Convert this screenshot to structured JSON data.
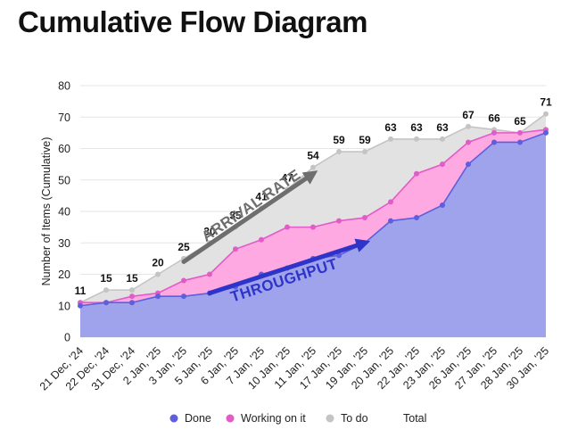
{
  "title": "Cumulative Flow Diagram",
  "chart_data": {
    "type": "area",
    "categories": [
      "21 Dec, '24",
      "22 Dec, '24",
      "31 Dec, '24",
      "2 Jan, '25",
      "3 Jan, '25",
      "5 Jan, '25",
      "6 Jan, '25",
      "7 Jan, '25",
      "10 Jan, '25",
      "11 Jan, '25",
      "17 Jan, '25",
      "19 Jan, '25",
      "20 Jan, '25",
      "22 Jan, '25",
      "23 Jan, '25",
      "26 Jan, '25",
      "27 Jan, '25",
      "28 Jan, '25",
      "30 Jan, '25"
    ],
    "series": [
      {
        "name": "Done",
        "color": "#5d5fdc",
        "fill": "#9fa3ec",
        "values": [
          10,
          11,
          11,
          13,
          13,
          14,
          16,
          20,
          22,
          25,
          26,
          30,
          37,
          38,
          42,
          55,
          62,
          62,
          65
        ]
      },
      {
        "name": "Working on it",
        "color": "#e25bc6",
        "fill": "#ffa9e2",
        "values": [
          11,
          11,
          13,
          14,
          18,
          20,
          28,
          31,
          35,
          35,
          37,
          38,
          43,
          52,
          55,
          62,
          65,
          65,
          66
        ]
      },
      {
        "name": "To do",
        "color": "#c4c4c4",
        "fill": "#e2e2e2",
        "values": [
          11,
          15,
          15,
          20,
          25,
          30,
          35,
          41,
          47,
          54,
          59,
          59,
          63,
          63,
          63,
          67,
          66,
          65,
          71
        ]
      },
      {
        "name": "Total",
        "color": "#ffffff",
        "values": [
          11,
          15,
          15,
          20,
          25,
          30,
          35,
          41,
          47,
          54,
          59,
          59,
          63,
          63,
          63,
          67,
          66,
          65,
          71
        ]
      }
    ],
    "data_labels": [
      "11",
      "15",
      "15",
      "20",
      "25",
      "30",
      "35",
      "41",
      "47",
      "54",
      "59",
      "59",
      "63",
      "63",
      "63",
      "67",
      "66",
      "65",
      "71"
    ],
    "ylabel": "Number of Items (Cumulative)",
    "xlabel": "",
    "ylim": [
      0,
      80
    ],
    "yticks": [
      0,
      10,
      20,
      30,
      40,
      50,
      60,
      70,
      80
    ],
    "grid": true,
    "legend_position": "bottom",
    "annotations": [
      {
        "text": "ARRIVAL RATE",
        "color": "#6e6e6e",
        "from": [
          "3 Jan, '25",
          24
        ],
        "to": [
          "11 Jan, '25",
          52
        ]
      },
      {
        "text": "THROUGHPUT",
        "color": "#2f34c9",
        "from": [
          "5 Jan, '25",
          14
        ],
        "to": [
          "19 Jan, '25",
          30
        ]
      }
    ]
  }
}
